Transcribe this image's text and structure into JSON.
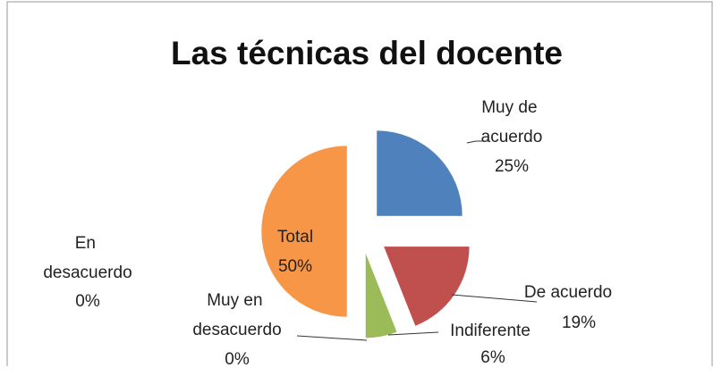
{
  "chart_data": {
    "type": "pie",
    "title": "Las técnicas del docente",
    "categories": [
      "Muy de acuerdo",
      "De acuerdo",
      "Indiferente",
      "Muy en desacuerdo",
      "En desacuerdo",
      "Total"
    ],
    "values": [
      25,
      19,
      6,
      0,
      0,
      50
    ],
    "value_labels": [
      "25%",
      "19%",
      "6%",
      "0%",
      "0%",
      "50%"
    ],
    "colors": [
      "#4f81bd",
      "#c0504d",
      "#9bbb59",
      "#8064a2",
      "#4bacc6",
      "#f79646"
    ]
  }
}
